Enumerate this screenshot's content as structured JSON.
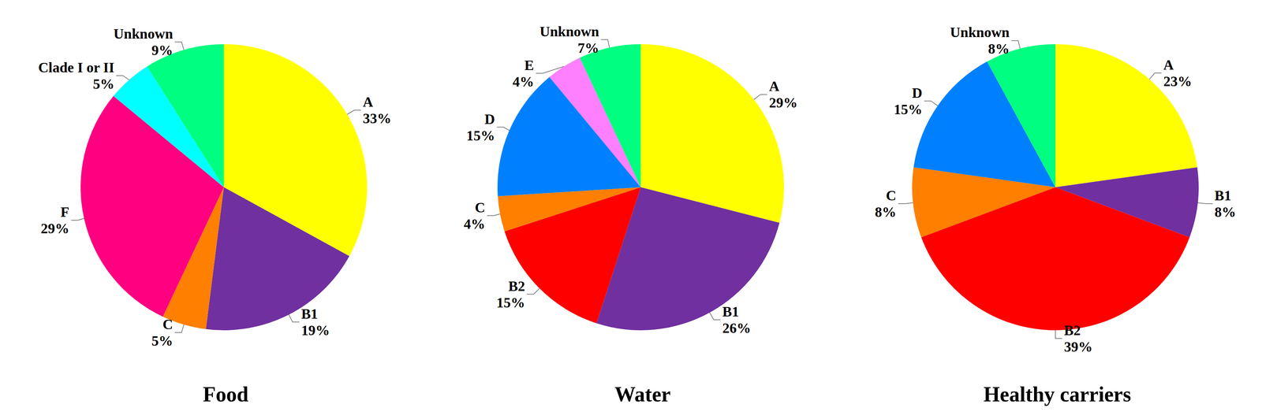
{
  "chart_data": [
    {
      "type": "pie",
      "title": "Food",
      "categories": [
        "A",
        "B1",
        "C",
        "F",
        "Clade I or II",
        "Unknown"
      ],
      "values": [
        33,
        19,
        5,
        29,
        5,
        9
      ],
      "value_labels": [
        "33%",
        "19%",
        "5%",
        "29%",
        "5%",
        "9%"
      ],
      "colors": [
        "#ffff00",
        "#7030a0",
        "#ff7f00",
        "#ff0080",
        "#00ffff",
        "#00ff80"
      ],
      "data_labels": true
    },
    {
      "type": "pie",
      "title": "Water",
      "categories": [
        "A",
        "B1",
        "B2",
        "C",
        "D",
        "E",
        "Unknown"
      ],
      "values": [
        29,
        26,
        15,
        4,
        15,
        4,
        7
      ],
      "value_labels": [
        "29%",
        "26%",
        "15%",
        "4%",
        "15%",
        "4%",
        "7%"
      ],
      "colors": [
        "#ffff00",
        "#7030a0",
        "#ff0000",
        "#ff7f00",
        "#0080ff",
        "#ff80ff",
        "#00ff80"
      ],
      "data_labels": true
    },
    {
      "type": "pie",
      "title": "Healthy carriers",
      "categories": [
        "A",
        "B1",
        "B2",
        "C",
        "D",
        "Unknown"
      ],
      "values": [
        23,
        8,
        39,
        8,
        15,
        8
      ],
      "value_labels": [
        "23%",
        "8%",
        "39%",
        "8%",
        "15%",
        "8%"
      ],
      "colors": [
        "#ffff00",
        "#7030a0",
        "#ff0000",
        "#ff7f00",
        "#0080ff",
        "#00ff80"
      ],
      "data_labels": true
    }
  ]
}
